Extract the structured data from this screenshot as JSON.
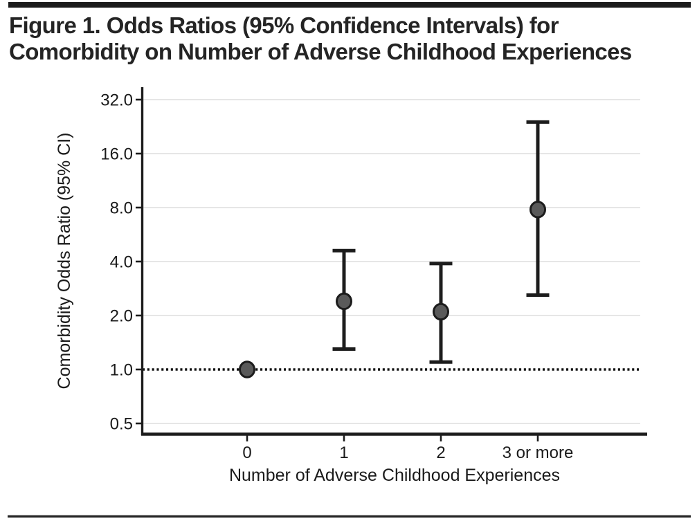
{
  "figure": {
    "title_line1": "Figure 1. Odds Ratios (95% Confidence Intervals) for",
    "title_line2": "Comorbidity on Number of Adverse Childhood Experiences"
  },
  "chart_data": {
    "type": "scatter",
    "title": "Figure 1. Odds Ratios (95% Confidence Intervals) for Comorbidity on Number of Adverse Childhood Experiences",
    "xlabel": "Number of Adverse Childhood Experiences",
    "ylabel": "Comorbidity Odds Ratio (95% CI)",
    "y_scale": "log2",
    "y_ticks": [
      "32.0",
      "16.0",
      "8.0",
      "4.0",
      "2.0",
      "1.0",
      "0.5"
    ],
    "y_tick_values": [
      32,
      16,
      8,
      4,
      2,
      1,
      0.5
    ],
    "ylim": [
      0.42,
      40
    ],
    "categories": [
      "0",
      "1",
      "2",
      "3 or more"
    ],
    "reference_line": 1.0,
    "grid": true,
    "legend": "none",
    "points": [
      {
        "category": "0",
        "or": 1.0,
        "ci_lower": null,
        "ci_upper": null,
        "reference": true
      },
      {
        "category": "1",
        "or": 2.4,
        "ci_lower": 1.3,
        "ci_upper": 4.6
      },
      {
        "category": "2",
        "or": 2.1,
        "ci_lower": 1.1,
        "ci_upper": 3.9
      },
      {
        "category": "3 or more",
        "or": 7.8,
        "ci_lower": 2.6,
        "ci_upper": 24.0
      }
    ],
    "colors": {
      "marker_fill": "#5a5a5a",
      "marker_stroke": "#1c1c1c",
      "error_bar": "#1c1c1c",
      "gridline": "#e6e6e6",
      "reference_line": "#111111",
      "axis": "#1c1c1c",
      "text": "#1a1a1a"
    }
  }
}
